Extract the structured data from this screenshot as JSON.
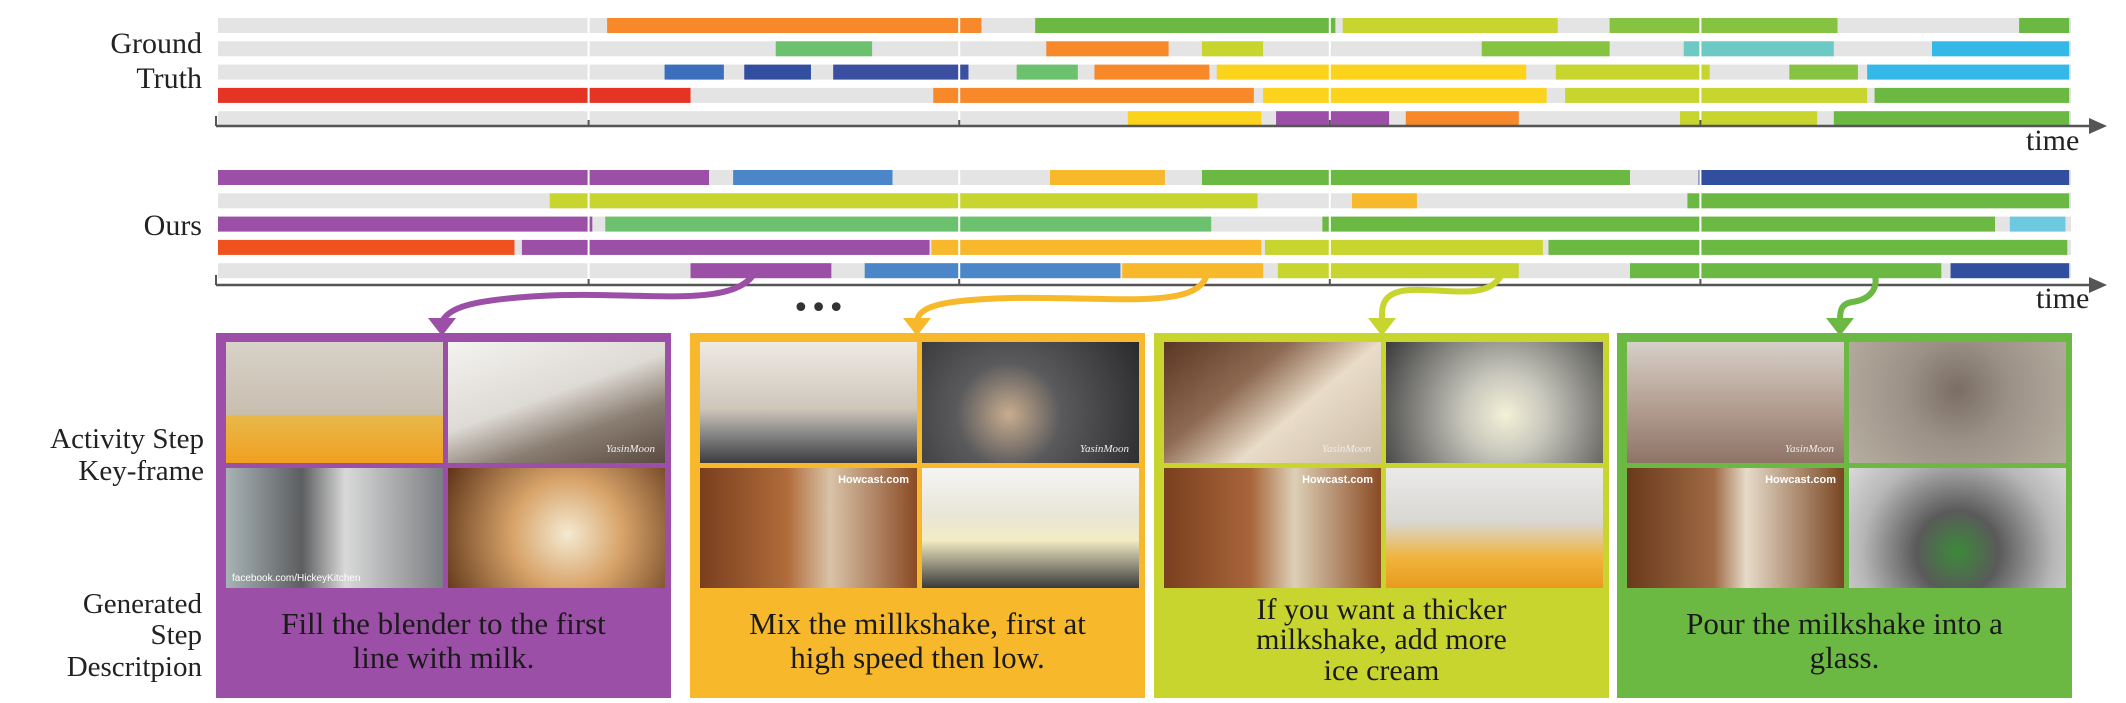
{
  "labels": {
    "ground_truth": [
      "Ground",
      "Truth"
    ],
    "ours": "Ours",
    "time_axis": "time",
    "ellipsis": "•••",
    "key_frame": [
      "Activity Step",
      "Key-frame"
    ],
    "step_description": [
      "Generated",
      "Step",
      "Descritpion"
    ]
  },
  "colors": {
    "track": "#e4e4e4",
    "axis": "#555555",
    "purple": "#9b4fa6",
    "orange": "#f7b82b",
    "lime": "#c8d52f",
    "green": "#6bb843"
  },
  "chart_data": {
    "type": "gantt",
    "x_axis_label": "time",
    "panels": [
      {
        "name": "Ground Truth",
        "rows": [
          [
            {
              "start": 0.21,
              "end": 0.412,
              "color": "#f7892a"
            },
            {
              "start": 0.441,
              "end": 0.603,
              "color": "#6bb843"
            },
            {
              "start": 0.607,
              "end": 0.723,
              "color": "#c8d52f"
            },
            {
              "start": 0.751,
              "end": 0.874,
              "color": "#85c341"
            },
            {
              "start": 0.972,
              "end": 0.999,
              "color": "#6bb843"
            }
          ],
          [
            {
              "start": 0.301,
              "end": 0.353,
              "color": "#6cc16f"
            },
            {
              "start": 0.447,
              "end": 0.513,
              "color": "#f7892a"
            },
            {
              "start": 0.531,
              "end": 0.564,
              "color": "#c8d52f"
            },
            {
              "start": 0.682,
              "end": 0.751,
              "color": "#85c341"
            },
            {
              "start": 0.791,
              "end": 0.872,
              "color": "#6cc9c4"
            },
            {
              "start": 0.925,
              "end": 0.999,
              "color": "#33b8e8"
            }
          ],
          [
            {
              "start": 0.241,
              "end": 0.273,
              "color": "#3b6fbb"
            },
            {
              "start": 0.284,
              "end": 0.32,
              "color": "#314f9e"
            },
            {
              "start": 0.332,
              "end": 0.405,
              "color": "#3a4fa0"
            },
            {
              "start": 0.431,
              "end": 0.464,
              "color": "#6cc16f"
            },
            {
              "start": 0.473,
              "end": 0.535,
              "color": "#f7892a"
            },
            {
              "start": 0.539,
              "end": 0.706,
              "color": "#fcd31c"
            },
            {
              "start": 0.722,
              "end": 0.805,
              "color": "#c8d52f"
            },
            {
              "start": 0.848,
              "end": 0.885,
              "color": "#85c341"
            },
            {
              "start": 0.89,
              "end": 0.999,
              "color": "#33b8e8"
            }
          ],
          [
            {
              "start": 0.0,
              "end": 0.255,
              "color": "#e63424"
            },
            {
              "start": 0.386,
              "end": 0.559,
              "color": "#f7892a"
            },
            {
              "start": 0.564,
              "end": 0.717,
              "color": "#fcd31c"
            },
            {
              "start": 0.727,
              "end": 0.89,
              "color": "#c8d52f"
            },
            {
              "start": 0.894,
              "end": 0.999,
              "color": "#6bb843"
            }
          ],
          [
            {
              "start": 0.491,
              "end": 0.563,
              "color": "#fcd31c"
            },
            {
              "start": 0.571,
              "end": 0.632,
              "color": "#9b4fa6"
            },
            {
              "start": 0.641,
              "end": 0.702,
              "color": "#f7892a"
            },
            {
              "start": 0.789,
              "end": 0.863,
              "color": "#c8d52f"
            },
            {
              "start": 0.872,
              "end": 0.999,
              "color": "#6bb843"
            }
          ]
        ]
      },
      {
        "name": "Ours",
        "rows": [
          [
            {
              "start": 0.0,
              "end": 0.265,
              "color": "#9b4fa6"
            },
            {
              "start": 0.278,
              "end": 0.364,
              "color": "#4a86c8"
            },
            {
              "start": 0.449,
              "end": 0.511,
              "color": "#f7b82b"
            },
            {
              "start": 0.531,
              "end": 0.762,
              "color": "#6bb843"
            },
            {
              "start": 0.799,
              "end": 0.999,
              "color": "#314f9e"
            }
          ],
          [
            {
              "start": 0.179,
              "end": 0.561,
              "color": "#c8d52f"
            },
            {
              "start": 0.612,
              "end": 0.647,
              "color": "#f7b82b"
            },
            {
              "start": 0.793,
              "end": 0.999,
              "color": "#6bb843"
            }
          ],
          [
            {
              "start": 0.0,
              "end": 0.202,
              "color": "#9b4fa6"
            },
            {
              "start": 0.209,
              "end": 0.536,
              "color": "#6cc16f"
            },
            {
              "start": 0.596,
              "end": 0.959,
              "color": "#6bb843"
            },
            {
              "start": 0.967,
              "end": 0.997,
              "color": "#6cc9e0"
            }
          ],
          [
            {
              "start": 0.0,
              "end": 0.16,
              "color": "#f0521f"
            },
            {
              "start": 0.164,
              "end": 0.384,
              "color": "#9b4fa6"
            },
            {
              "start": 0.385,
              "end": 0.563,
              "color": "#f7b82b"
            },
            {
              "start": 0.565,
              "end": 0.715,
              "color": "#c8d52f"
            },
            {
              "start": 0.718,
              "end": 0.998,
              "color": "#6bb843"
            }
          ],
          [
            {
              "start": 0.255,
              "end": 0.331,
              "color": "#9b4fa6"
            },
            {
              "start": 0.349,
              "end": 0.487,
              "color": "#4a86c8"
            },
            {
              "start": 0.488,
              "end": 0.564,
              "color": "#f7b82b"
            },
            {
              "start": 0.572,
              "end": 0.702,
              "color": "#c8d52f"
            },
            {
              "start": 0.762,
              "end": 0.93,
              "color": "#6bb843"
            },
            {
              "start": 0.935,
              "end": 0.999,
              "color": "#314f9e"
            }
          ]
        ]
      }
    ]
  },
  "steps": [
    {
      "color": "#9b4fa6",
      "description": [
        "Fill the blender to the first",
        "line with milk."
      ],
      "watermark": "YasinMoon",
      "social": "facebook.com/HickeyKitchen"
    },
    {
      "color": "#f7b82b",
      "description": [
        "Mix the millkshake, first at",
        "high speed then low."
      ],
      "watermark": "YasinMoon",
      "brand": "Howcast.com"
    },
    {
      "color": "#c8d52f",
      "description": [
        "If you want a thicker",
        "milkshake, add more",
        "ice cream"
      ],
      "watermark": "YasinMoon",
      "brand": "Howcast.com"
    },
    {
      "color": "#6bb843",
      "description": [
        "Pour the milkshake into a",
        "glass."
      ],
      "watermark": "YasinMoon",
      "brand": "Howcast.com"
    }
  ]
}
